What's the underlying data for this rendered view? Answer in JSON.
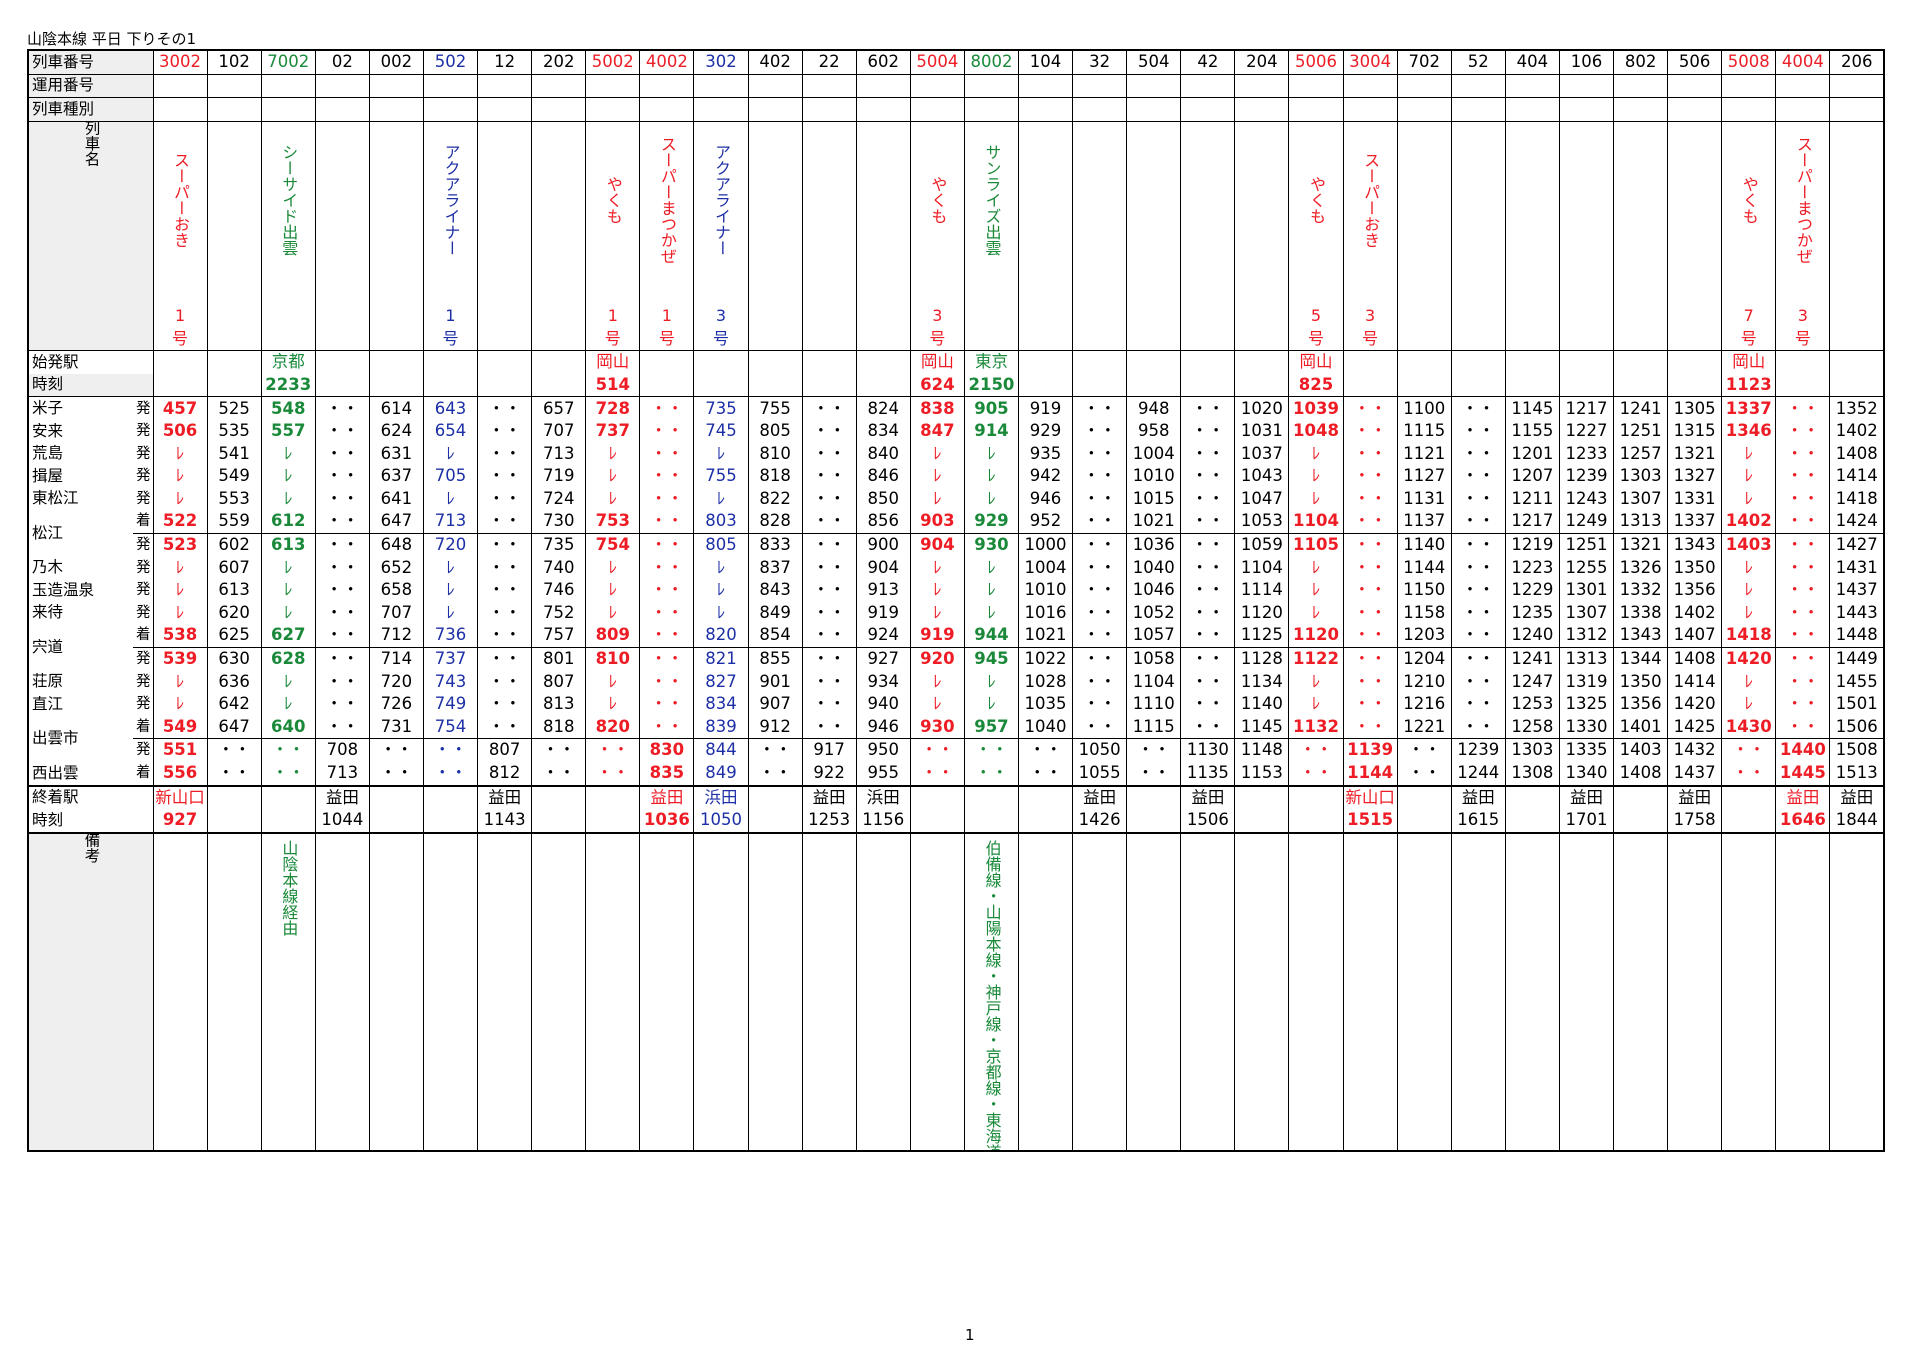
{
  "title": "山陰本線 平日 下りその1",
  "page_number": "1",
  "colors": {
    "red": "#ee1c25",
    "green": "#1a8a3a",
    "blue": "#1c2fa6",
    "black": "#000000"
  },
  "labels": {
    "train_number": "列車番号",
    "operation_number": "運用番号",
    "train_type": "列車種別",
    "train_name": "列車名",
    "origin_station": "始発駅",
    "time": "時刻",
    "dest_station": "終着駅",
    "remarks": "備考"
  },
  "trains": [
    {
      "no": "3002",
      "c": "red",
      "name": "スーパーおき",
      "num": [
        "1",
        "号"
      ],
      "orig": "",
      "otime": "",
      "dest": "新山口",
      "dtime": "927",
      "note": ""
    },
    {
      "no": "102",
      "c": "black",
      "name": "",
      "num": [
        "",
        ""
      ],
      "orig": "",
      "otime": "",
      "dest": "",
      "dtime": "",
      "note": ""
    },
    {
      "no": "7002",
      "c": "green",
      "name": "シーサイド出雲",
      "num": [
        "",
        ""
      ],
      "orig": "京都",
      "otime": "2233",
      "dest": "",
      "dtime": "",
      "note": "山陰本線経由"
    },
    {
      "no": "02",
      "c": "black",
      "name": "",
      "num": [
        "",
        ""
      ],
      "orig": "",
      "otime": "",
      "dest": "益田",
      "dtime": "1044",
      "note": ""
    },
    {
      "no": "002",
      "c": "black",
      "name": "",
      "num": [
        "",
        ""
      ],
      "orig": "",
      "otime": "",
      "dest": "",
      "dtime": "",
      "note": ""
    },
    {
      "no": "502",
      "c": "blue",
      "name": "アクアライナー",
      "num": [
        "1",
        "号"
      ],
      "orig": "",
      "otime": "",
      "dest": "",
      "dtime": "",
      "note": ""
    },
    {
      "no": "12",
      "c": "black",
      "name": "",
      "num": [
        "",
        ""
      ],
      "orig": "",
      "otime": "",
      "dest": "益田",
      "dtime": "1143",
      "note": ""
    },
    {
      "no": "202",
      "c": "black",
      "name": "",
      "num": [
        "",
        ""
      ],
      "orig": "",
      "otime": "",
      "dest": "",
      "dtime": "",
      "note": ""
    },
    {
      "no": "5002",
      "c": "red",
      "name": "やくも",
      "num": [
        "1",
        "号"
      ],
      "orig": "岡山",
      "otime": "514",
      "dest": "",
      "dtime": "",
      "note": ""
    },
    {
      "no": "4002",
      "c": "red",
      "name": "スーパーまつかぜ",
      "num": [
        "1",
        "号"
      ],
      "orig": "",
      "otime": "",
      "dest": "益田",
      "dtime": "1036",
      "note": ""
    },
    {
      "no": "302",
      "c": "blue",
      "name": "アクアライナー",
      "num": [
        "3",
        "号"
      ],
      "orig": "",
      "otime": "",
      "dest": "浜田",
      "dtime": "1050",
      "note": ""
    },
    {
      "no": "402",
      "c": "black",
      "name": "",
      "num": [
        "",
        ""
      ],
      "orig": "",
      "otime": "",
      "dest": "",
      "dtime": "",
      "note": ""
    },
    {
      "no": "22",
      "c": "black",
      "name": "",
      "num": [
        "",
        ""
      ],
      "orig": "",
      "otime": "",
      "dest": "益田",
      "dtime": "1253",
      "note": ""
    },
    {
      "no": "602",
      "c": "black",
      "name": "",
      "num": [
        "",
        ""
      ],
      "orig": "",
      "otime": "",
      "dest": "浜田",
      "dtime": "1156",
      "note": ""
    },
    {
      "no": "5004",
      "c": "red",
      "name": "やくも",
      "num": [
        "3",
        "号"
      ],
      "orig": "岡山",
      "otime": "624",
      "dest": "",
      "dtime": "",
      "note": ""
    },
    {
      "no": "8002",
      "c": "green",
      "name": "サンライズ出雲",
      "num": [
        "",
        ""
      ],
      "orig": "東京",
      "otime": "2150",
      "dest": "",
      "dtime": "",
      "note": "伯備線・山陽本線・神戸線・京都線・東海道本線経由"
    },
    {
      "no": "104",
      "c": "black",
      "name": "",
      "num": [
        "",
        ""
      ],
      "orig": "",
      "otime": "",
      "dest": "",
      "dtime": "",
      "note": ""
    },
    {
      "no": "32",
      "c": "black",
      "name": "",
      "num": [
        "",
        ""
      ],
      "orig": "",
      "otime": "",
      "dest": "益田",
      "dtime": "1426",
      "note": ""
    },
    {
      "no": "504",
      "c": "black",
      "name": "",
      "num": [
        "",
        ""
      ],
      "orig": "",
      "otime": "",
      "dest": "",
      "dtime": "",
      "note": ""
    },
    {
      "no": "42",
      "c": "black",
      "name": "",
      "num": [
        "",
        ""
      ],
      "orig": "",
      "otime": "",
      "dest": "益田",
      "dtime": "1506",
      "note": ""
    },
    {
      "no": "204",
      "c": "black",
      "name": "",
      "num": [
        "",
        ""
      ],
      "orig": "",
      "otime": "",
      "dest": "",
      "dtime": "",
      "note": ""
    },
    {
      "no": "5006",
      "c": "red",
      "name": "やくも",
      "num": [
        "5",
        "号"
      ],
      "orig": "岡山",
      "otime": "825",
      "dest": "",
      "dtime": "",
      "note": ""
    },
    {
      "no": "3004",
      "c": "red",
      "name": "スーパーおき",
      "num": [
        "3",
        "号"
      ],
      "orig": "",
      "otime": "",
      "dest": "新山口",
      "dtime": "1515",
      "note": ""
    },
    {
      "no": "702",
      "c": "black",
      "name": "",
      "num": [
        "",
        ""
      ],
      "orig": "",
      "otime": "",
      "dest": "",
      "dtime": "",
      "note": ""
    },
    {
      "no": "52",
      "c": "black",
      "name": "",
      "num": [
        "",
        ""
      ],
      "orig": "",
      "otime": "",
      "dest": "益田",
      "dtime": "1615",
      "note": ""
    },
    {
      "no": "404",
      "c": "black",
      "name": "",
      "num": [
        "",
        ""
      ],
      "orig": "",
      "otime": "",
      "dest": "",
      "dtime": "",
      "note": ""
    },
    {
      "no": "106",
      "c": "black",
      "name": "",
      "num": [
        "",
        ""
      ],
      "orig": "",
      "otime": "",
      "dest": "益田",
      "dtime": "1701",
      "note": ""
    },
    {
      "no": "802",
      "c": "black",
      "name": "",
      "num": [
        "",
        ""
      ],
      "orig": "",
      "otime": "",
      "dest": "",
      "dtime": "",
      "note": ""
    },
    {
      "no": "506",
      "c": "black",
      "name": "",
      "num": [
        "",
        ""
      ],
      "orig": "",
      "otime": "",
      "dest": "益田",
      "dtime": "1758",
      "note": ""
    },
    {
      "no": "5008",
      "c": "red",
      "name": "やくも",
      "num": [
        "7",
        "号"
      ],
      "orig": "岡山",
      "otime": "1123",
      "dest": "",
      "dtime": "",
      "note": ""
    },
    {
      "no": "4004",
      "c": "red",
      "name": "スーパーまつかぜ",
      "num": [
        "3",
        "号"
      ],
      "orig": "",
      "otime": "",
      "dest": "益田",
      "dtime": "1646",
      "note": ""
    },
    {
      "no": "206",
      "c": "black",
      "name": "",
      "num": [
        "",
        ""
      ],
      "orig": "",
      "otime": "",
      "dest": "益田",
      "dtime": "1844",
      "note": ""
    }
  ],
  "rows": [
    {
      "st": "米子",
      "m": "発",
      "t": [
        "457",
        "525",
        "548",
        "・・",
        "614",
        "643",
        "・・",
        "657",
        "728",
        "・・",
        "735",
        "755",
        "・・",
        "824",
        "838",
        "905",
        "919",
        "・・",
        "948",
        "・・",
        "1020",
        "1039",
        "・・",
        "1100",
        "・・",
        "1145",
        "1217",
        "1241",
        "1305",
        "1337",
        "・・",
        "1352"
      ]
    },
    {
      "st": "安来",
      "m": "発",
      "t": [
        "506",
        "535",
        "557",
        "・・",
        "624",
        "654",
        "・・",
        "707",
        "737",
        "・・",
        "745",
        "805",
        "・・",
        "834",
        "847",
        "914",
        "929",
        "・・",
        "958",
        "・・",
        "1031",
        "1048",
        "・・",
        "1115",
        "・・",
        "1155",
        "1227",
        "1251",
        "1315",
        "1346",
        "・・",
        "1402"
      ]
    },
    {
      "st": "荒島",
      "m": "発",
      "t": [
        "ﾚ",
        "541",
        "ﾚ",
        "・・",
        "631",
        "ﾚ",
        "・・",
        "713",
        "ﾚ",
        "・・",
        "ﾚ",
        "810",
        "・・",
        "840",
        "ﾚ",
        "ﾚ",
        "935",
        "・・",
        "1004",
        "・・",
        "1037",
        "ﾚ",
        "・・",
        "1121",
        "・・",
        "1201",
        "1233",
        "1257",
        "1321",
        "ﾚ",
        "・・",
        "1408"
      ]
    },
    {
      "st": "揖屋",
      "m": "発",
      "t": [
        "ﾚ",
        "549",
        "ﾚ",
        "・・",
        "637",
        "705",
        "・・",
        "719",
        "ﾚ",
        "・・",
        "755",
        "818",
        "・・",
        "846",
        "ﾚ",
        "ﾚ",
        "942",
        "・・",
        "1010",
        "・・",
        "1043",
        "ﾚ",
        "・・",
        "1127",
        "・・",
        "1207",
        "1239",
        "1303",
        "1327",
        "ﾚ",
        "・・",
        "1414"
      ]
    },
    {
      "st": "東松江",
      "m": "発",
      "t": [
        "ﾚ",
        "553",
        "ﾚ",
        "・・",
        "641",
        "ﾚ",
        "・・",
        "724",
        "ﾚ",
        "・・",
        "ﾚ",
        "822",
        "・・",
        "850",
        "ﾚ",
        "ﾚ",
        "946",
        "・・",
        "1015",
        "・・",
        "1047",
        "ﾚ",
        "・・",
        "1131",
        "・・",
        "1211",
        "1243",
        "1307",
        "1331",
        "ﾚ",
        "・・",
        "1418"
      ]
    },
    {
      "st": "松江",
      "m": "着",
      "t": [
        "522",
        "559",
        "612",
        "・・",
        "647",
        "713",
        "・・",
        "730",
        "753",
        "・・",
        "803",
        "828",
        "・・",
        "856",
        "903",
        "929",
        "952",
        "・・",
        "1021",
        "・・",
        "1053",
        "1104",
        "・・",
        "1137",
        "・・",
        "1217",
        "1249",
        "1313",
        "1337",
        "1402",
        "・・",
        "1424"
      ]
    },
    {
      "st": "",
      "m": "発",
      "t": [
        "523",
        "602",
        "613",
        "・・",
        "648",
        "720",
        "・・",
        "735",
        "754",
        "・・",
        "805",
        "833",
        "・・",
        "900",
        "904",
        "930",
        "1000",
        "・・",
        "1036",
        "・・",
        "1059",
        "1105",
        "・・",
        "1140",
        "・・",
        "1219",
        "1251",
        "1321",
        "1343",
        "1403",
        "・・",
        "1427"
      ]
    },
    {
      "st": "乃木",
      "m": "発",
      "t": [
        "ﾚ",
        "607",
        "ﾚ",
        "・・",
        "652",
        "ﾚ",
        "・・",
        "740",
        "ﾚ",
        "・・",
        "ﾚ",
        "837",
        "・・",
        "904",
        "ﾚ",
        "ﾚ",
        "1004",
        "・・",
        "1040",
        "・・",
        "1104",
        "ﾚ",
        "・・",
        "1144",
        "・・",
        "1223",
        "1255",
        "1326",
        "1350",
        "ﾚ",
        "・・",
        "1431"
      ]
    },
    {
      "st": "玉造温泉",
      "m": "発",
      "t": [
        "ﾚ",
        "613",
        "ﾚ",
        "・・",
        "658",
        "ﾚ",
        "・・",
        "746",
        "ﾚ",
        "・・",
        "ﾚ",
        "843",
        "・・",
        "913",
        "ﾚ",
        "ﾚ",
        "1010",
        "・・",
        "1046",
        "・・",
        "1114",
        "ﾚ",
        "・・",
        "1150",
        "・・",
        "1229",
        "1301",
        "1332",
        "1356",
        "ﾚ",
        "・・",
        "1437"
      ]
    },
    {
      "st": "来待",
      "m": "発",
      "t": [
        "ﾚ",
        "620",
        "ﾚ",
        "・・",
        "707",
        "ﾚ",
        "・・",
        "752",
        "ﾚ",
        "・・",
        "ﾚ",
        "849",
        "・・",
        "919",
        "ﾚ",
        "ﾚ",
        "1016",
        "・・",
        "1052",
        "・・",
        "1120",
        "ﾚ",
        "・・",
        "1158",
        "・・",
        "1235",
        "1307",
        "1338",
        "1402",
        "ﾚ",
        "・・",
        "1443"
      ]
    },
    {
      "st": "宍道",
      "m": "着",
      "t": [
        "538",
        "625",
        "627",
        "・・",
        "712",
        "736",
        "・・",
        "757",
        "809",
        "・・",
        "820",
        "854",
        "・・",
        "924",
        "919",
        "944",
        "1021",
        "・・",
        "1057",
        "・・",
        "1125",
        "1120",
        "・・",
        "1203",
        "・・",
        "1240",
        "1312",
        "1343",
        "1407",
        "1418",
        "・・",
        "1448"
      ]
    },
    {
      "st": "",
      "m": "発",
      "t": [
        "539",
        "630",
        "628",
        "・・",
        "714",
        "737",
        "・・",
        "801",
        "810",
        "・・",
        "821",
        "855",
        "・・",
        "927",
        "920",
        "945",
        "1022",
        "・・",
        "1058",
        "・・",
        "1128",
        "1122",
        "・・",
        "1204",
        "・・",
        "1241",
        "1313",
        "1344",
        "1408",
        "1420",
        "・・",
        "1449"
      ]
    },
    {
      "st": "荘原",
      "m": "発",
      "t": [
        "ﾚ",
        "636",
        "ﾚ",
        "・・",
        "720",
        "743",
        "・・",
        "807",
        "ﾚ",
        "・・",
        "827",
        "901",
        "・・",
        "934",
        "ﾚ",
        "ﾚ",
        "1028",
        "・・",
        "1104",
        "・・",
        "1134",
        "ﾚ",
        "・・",
        "1210",
        "・・",
        "1247",
        "1319",
        "1350",
        "1414",
        "ﾚ",
        "・・",
        "1455"
      ]
    },
    {
      "st": "直江",
      "m": "発",
      "t": [
        "ﾚ",
        "642",
        "ﾚ",
        "・・",
        "726",
        "749",
        "・・",
        "813",
        "ﾚ",
        "・・",
        "834",
        "907",
        "・・",
        "940",
        "ﾚ",
        "ﾚ",
        "1035",
        "・・",
        "1110",
        "・・",
        "1140",
        "ﾚ",
        "・・",
        "1216",
        "・・",
        "1253",
        "1325",
        "1356",
        "1420",
        "ﾚ",
        "・・",
        "1501"
      ]
    },
    {
      "st": "出雲市",
      "m": "着",
      "t": [
        "549",
        "647",
        "640",
        "・・",
        "731",
        "754",
        "・・",
        "818",
        "820",
        "・・",
        "839",
        "912",
        "・・",
        "946",
        "930",
        "957",
        "1040",
        "・・",
        "1115",
        "・・",
        "1145",
        "1132",
        "・・",
        "1221",
        "・・",
        "1258",
        "1330",
        "1401",
        "1425",
        "1430",
        "・・",
        "1506"
      ]
    },
    {
      "st": "",
      "m": "発",
      "t": [
        "551",
        "・・",
        "・・",
        "708",
        "・・",
        "・・",
        "807",
        "・・",
        "・・",
        "830",
        "844",
        "・・",
        "917",
        "950",
        "・・",
        "・・",
        "・・",
        "1050",
        "・・",
        "1130",
        "1148",
        "・・",
        "1139",
        "・・",
        "1239",
        "1303",
        "1335",
        "1403",
        "1432",
        "・・",
        "1440",
        "1508"
      ]
    },
    {
      "st": "西出雲",
      "m": "着",
      "t": [
        "556",
        "・・",
        "・・",
        "713",
        "・・",
        "・・",
        "812",
        "・・",
        "・・",
        "835",
        "849",
        "・・",
        "922",
        "955",
        "・・",
        "・・",
        "・・",
        "1055",
        "・・",
        "1135",
        "1153",
        "・・",
        "1144",
        "・・",
        "1244",
        "1308",
        "1340",
        "1408",
        "1437",
        "・・",
        "1445",
        "1513"
      ]
    }
  ]
}
